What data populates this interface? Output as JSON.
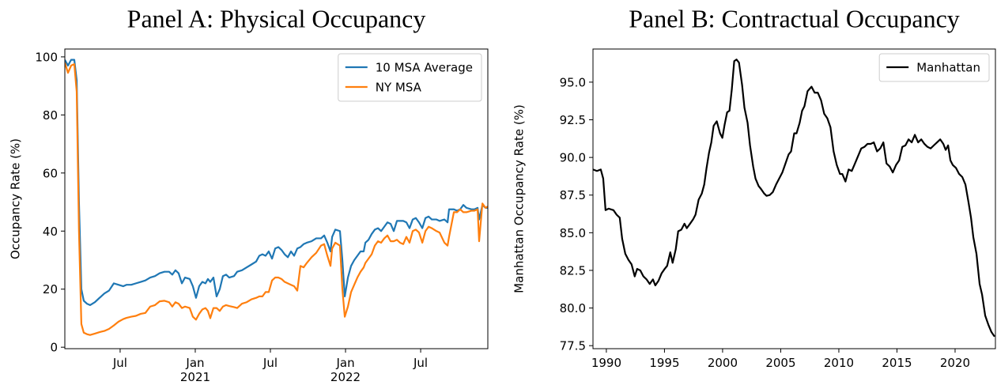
{
  "chart_data": [
    {
      "type": "line",
      "title": "Panel A: Physical Occupancy",
      "ylabel": "Occupancy Rate (%)",
      "legend": "upper right",
      "xlim": [
        2020.132,
        2022.947
      ],
      "ylim": [
        -0.5,
        102.7
      ],
      "xticks": [
        {
          "value": 2020.5,
          "label": "Jul"
        },
        {
          "value": 2021,
          "label": "Jan\n2021"
        },
        {
          "value": 2021.5,
          "label": "Jul"
        },
        {
          "value": 2022,
          "label": "Jan\n2022"
        },
        {
          "value": 2022.5,
          "label": "Jul"
        }
      ],
      "yticks": [
        0,
        20,
        40,
        60,
        80,
        100
      ],
      "x": [
        2020.132,
        2020.153,
        2020.174,
        2020.195,
        2020.211,
        2020.226,
        2020.242,
        2020.258,
        2020.279,
        2020.3,
        2020.332,
        2020.363,
        2020.395,
        2020.426,
        2020.458,
        2020.489,
        2020.521,
        2020.542,
        2020.574,
        2020.605,
        2020.637,
        2020.668,
        2020.7,
        2020.732,
        2020.763,
        2020.795,
        2020.826,
        2020.847,
        2020.868,
        2020.889,
        2020.911,
        2020.932,
        2020.963,
        2020.984,
        2021.005,
        2021.026,
        2021.047,
        2021.068,
        2021.084,
        2021.1,
        2021.121,
        2021.142,
        2021.163,
        2021.184,
        2021.205,
        2021.226,
        2021.258,
        2021.279,
        2021.311,
        2021.342,
        2021.374,
        2021.405,
        2021.426,
        2021.447,
        2021.468,
        2021.489,
        2021.511,
        2021.532,
        2021.553,
        2021.574,
        2021.595,
        2021.616,
        2021.637,
        2021.658,
        2021.679,
        2021.7,
        2021.721,
        2021.742,
        2021.774,
        2021.805,
        2021.837,
        2021.858,
        2021.879,
        2021.9,
        2021.911,
        2021.932,
        2021.963,
        2021.979,
        2021.995,
        2022.016,
        2022.037,
        2022.058,
        2022.079,
        2022.1,
        2022.121,
        2022.132,
        2022.153,
        2022.174,
        2022.195,
        2022.216,
        2022.237,
        2022.258,
        2022.279,
        2022.3,
        2022.321,
        2022.342,
        2022.363,
        2022.384,
        2022.405,
        2022.426,
        2022.447,
        2022.468,
        2022.489,
        2022.511,
        2022.532,
        2022.553,
        2022.574,
        2022.605,
        2022.626,
        2022.658,
        2022.679,
        2022.689,
        2022.721,
        2022.742,
        2022.763,
        2022.784,
        2022.805,
        2022.837,
        2022.858,
        2022.879,
        2022.889,
        2022.911,
        2022.932,
        2022.947
      ],
      "series": [
        {
          "name": "10 MSA Average",
          "color": "#1f77b4",
          "values": [
            99,
            97,
            99,
            99,
            92,
            50,
            20,
            16,
            15,
            14.5,
            15.5,
            17,
            18.5,
            19.5,
            22,
            21.5,
            21,
            21.5,
            21.5,
            22,
            22.5,
            23,
            24,
            24.5,
            25.5,
            26,
            26,
            25,
            26.5,
            25.5,
            22,
            24,
            23.5,
            21,
            17,
            21,
            22.5,
            22,
            23.5,
            22.5,
            24,
            17.5,
            20,
            24.5,
            25,
            24,
            24.5,
            26,
            26.5,
            27.5,
            28.5,
            29.5,
            31.5,
            32,
            31.5,
            33,
            30.5,
            34,
            34.5,
            33.5,
            32,
            31,
            33,
            31.5,
            34,
            34.5,
            35.5,
            36,
            36.5,
            37.5,
            37.5,
            38.5,
            36,
            33,
            38,
            40.5,
            40,
            30,
            17.5,
            24,
            28,
            30,
            31.5,
            33,
            33,
            36,
            37,
            39,
            40.5,
            41,
            40,
            41.5,
            43,
            42.5,
            40,
            43.5,
            43.5,
            43.5,
            43,
            41,
            44,
            44.5,
            43,
            41,
            44.5,
            45,
            44,
            44,
            43.5,
            44,
            43,
            47.5,
            47.5,
            47,
            47.5,
            49,
            48,
            47.5,
            47.5,
            48,
            44,
            49,
            48,
            48
          ]
        },
        {
          "name": "NY MSA",
          "color": "#ff7f0e",
          "values": [
            98,
            94.5,
            97,
            97.5,
            88,
            40,
            8,
            5,
            4.5,
            4.2,
            4.7,
            5.2,
            5.6,
            6.3,
            7.5,
            8.8,
            9.7,
            10.1,
            10.5,
            10.8,
            11.5,
            11.8,
            14,
            14.5,
            15.8,
            16,
            15.5,
            14,
            15.5,
            15,
            13.5,
            14,
            13.5,
            10.5,
            9.5,
            11.5,
            13,
            13.5,
            12.5,
            10,
            13.5,
            13.5,
            12.5,
            14,
            14.5,
            14.2,
            13.8,
            13.5,
            15,
            15.5,
            16.5,
            17,
            17.5,
            17.5,
            19,
            19,
            23,
            24,
            24,
            23.5,
            22.5,
            22,
            21.5,
            21,
            19.5,
            28,
            27.5,
            29,
            31,
            32.5,
            35,
            35.5,
            31.5,
            28,
            34,
            36,
            35,
            20,
            10.5,
            14,
            19,
            21.5,
            24,
            26,
            27.5,
            29,
            30.5,
            32,
            35,
            36.5,
            36,
            37.5,
            38.5,
            36.5,
            36.5,
            37,
            36,
            35.5,
            38,
            36,
            40,
            40.5,
            39.5,
            36,
            40,
            41.5,
            41,
            40,
            39.5,
            36,
            35,
            38,
            46.5,
            46.5,
            47.5,
            46.5,
            46.5,
            47,
            47,
            47.5,
            36.5,
            49.5,
            48,
            48.5
          ]
        }
      ]
    },
    {
      "type": "line",
      "title": "Panel B: Contractual Occupancy",
      "ylabel": "Manhattan Occupancy Rate (%)",
      "legend": "upper right",
      "xlim": [
        1988.85,
        2023.47
      ],
      "ylim": [
        77.3,
        97.2
      ],
      "xticks": [
        1990,
        1995,
        2000,
        2005,
        2010,
        2015,
        2020
      ],
      "yticks": [
        77.5,
        {
          "value": 80,
          "label": "80.0"
        },
        82.5,
        {
          "value": 85,
          "label": "85.0"
        },
        87.5,
        {
          "value": 90,
          "label": "90.0"
        },
        92.5,
        {
          "value": 95,
          "label": "95.0"
        }
      ],
      "x": [
        1988.85,
        1989.19,
        1989.52,
        1989.73,
        1989.93,
        1990.2,
        1990.61,
        1990.88,
        1991.15,
        1991.36,
        1991.63,
        1991.9,
        1992.17,
        1992.44,
        1992.65,
        1992.92,
        1993.19,
        1993.46,
        1993.73,
        1994.01,
        1994.21,
        1994.48,
        1994.75,
        1995.02,
        1995.23,
        1995.5,
        1995.7,
        1995.97,
        1996.18,
        1996.45,
        1996.72,
        1996.92,
        1997.2,
        1997.47,
        1997.67,
        1997.94,
        1998.21,
        1998.42,
        1998.62,
        1998.83,
        1999.03,
        1999.23,
        1999.5,
        1999.78,
        1999.98,
        2000.18,
        2000.39,
        2000.59,
        2000.79,
        2001.0,
        2001.2,
        2001.41,
        2001.68,
        2001.88,
        2002.15,
        2002.36,
        2002.63,
        2002.83,
        2003.1,
        2003.31,
        2003.58,
        2003.78,
        2004.05,
        2004.32,
        2004.6,
        2004.87,
        2005.14,
        2005.41,
        2005.68,
        2005.89,
        2006.16,
        2006.36,
        2006.63,
        2006.84,
        2007.04,
        2007.31,
        2007.65,
        2007.92,
        2008.19,
        2008.47,
        2008.74,
        2009.01,
        2009.28,
        2009.55,
        2009.82,
        2010.1,
        2010.3,
        2010.57,
        2010.84,
        2011.11,
        2011.39,
        2011.66,
        2011.93,
        2012.2,
        2012.47,
        2012.74,
        2013.01,
        2013.29,
        2013.56,
        2013.83,
        2014.1,
        2014.37,
        2014.64,
        2014.92,
        2015.19,
        2015.46,
        2015.73,
        2016.0,
        2016.27,
        2016.54,
        2016.82,
        2017.09,
        2017.36,
        2017.63,
        2017.9,
        2018.17,
        2018.45,
        2018.72,
        2018.99,
        2019.19,
        2019.4,
        2019.6,
        2019.8,
        2020.08,
        2020.35,
        2020.62,
        2020.89,
        2021.16,
        2021.37,
        2021.57,
        2021.84,
        2022.11,
        2022.32,
        2022.59,
        2022.86,
        2023.13,
        2023.4
      ],
      "series": [
        {
          "name": "Manhattan",
          "color": "#000000",
          "values": [
            89.2,
            89.1,
            89.2,
            88.6,
            86.5,
            86.6,
            86.5,
            86.2,
            86.0,
            84.6,
            83.6,
            83.2,
            82.9,
            82.1,
            82.6,
            82.5,
            82.1,
            81.9,
            81.6,
            81.9,
            81.5,
            81.8,
            82.3,
            82.6,
            82.8,
            83.7,
            83.0,
            83.9,
            85.1,
            85.2,
            85.6,
            85.3,
            85.6,
            85.9,
            86.2,
            87.2,
            87.6,
            88.2,
            89.3,
            90.3,
            91.0,
            92.1,
            92.4,
            91.6,
            91.3,
            92.2,
            93.0,
            93.1,
            94.5,
            96.4,
            96.5,
            96.3,
            94.8,
            93.3,
            92.3,
            90.8,
            89.4,
            88.6,
            88.1,
            87.9,
            87.6,
            87.45,
            87.5,
            87.7,
            88.2,
            88.6,
            89.0,
            89.6,
            90.2,
            90.4,
            91.6,
            91.6,
            92.3,
            93.1,
            93.4,
            94.4,
            94.7,
            94.3,
            94.3,
            93.8,
            92.9,
            92.6,
            92.0,
            90.4,
            89.5,
            88.9,
            88.9,
            88.4,
            89.2,
            89.1,
            89.6,
            90.1,
            90.6,
            90.7,
            90.9,
            90.9,
            91.0,
            90.4,
            90.6,
            91.0,
            89.6,
            89.4,
            89.0,
            89.5,
            89.8,
            90.7,
            90.8,
            91.2,
            91.0,
            91.5,
            91.0,
            91.2,
            90.9,
            90.7,
            90.6,
            90.8,
            91.0,
            91.2,
            90.9,
            90.5,
            90.8,
            89.8,
            89.5,
            89.3,
            88.9,
            88.7,
            88.2,
            87.0,
            86.0,
            84.7,
            83.6,
            81.6,
            80.9,
            79.5,
            78.9,
            78.4,
            78.1
          ]
        }
      ]
    }
  ]
}
